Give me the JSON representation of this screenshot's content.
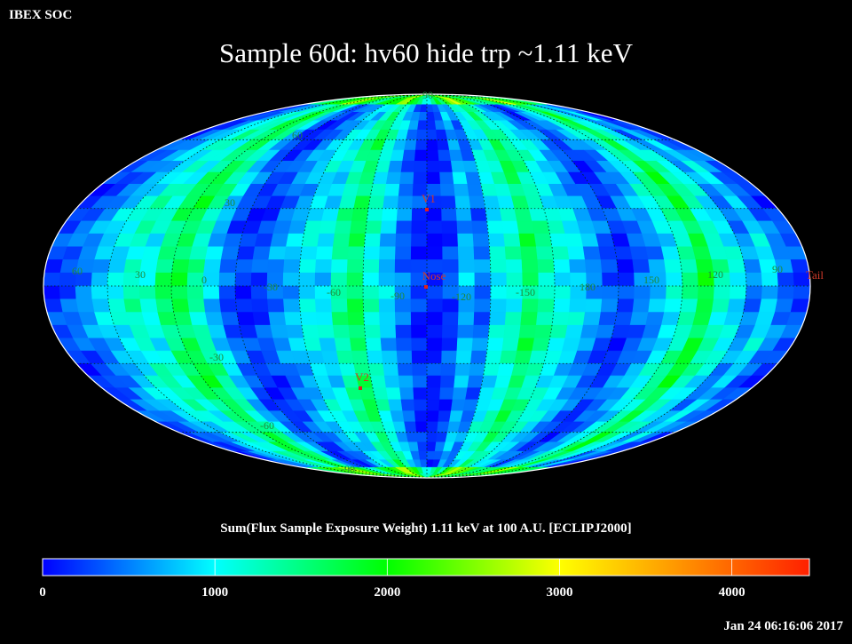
{
  "header": {
    "corner_label": "IBEX SOC",
    "title": "Sample 60d: hv60 hide trp ~1.11 keV"
  },
  "map": {
    "latitude_labels": [
      "90",
      "60",
      "30",
      "-30",
      "-60",
      "-90"
    ],
    "longitude_labels": [
      "60",
      "30",
      "0",
      "-30",
      "-60",
      "-90",
      "-120",
      "-150",
      "180",
      "150",
      "120",
      "90"
    ],
    "markers": [
      {
        "label": "V1"
      },
      {
        "label": "Nose"
      },
      {
        "label": "V2"
      },
      {
        "label": "Tail"
      }
    ]
  },
  "colorbar": {
    "title": "Sum(Flux Sample Exposure Weight)  1.11 keV at 100 A.U. [ECLIPJ2000]",
    "tick_labels": [
      "0",
      "1000",
      "2000",
      "3000",
      "4000"
    ],
    "range": [
      0,
      4450
    ],
    "colors": [
      "#0000ff",
      "#00ffff",
      "#00ff00",
      "#ffff00",
      "#ff0000"
    ]
  },
  "footer": {
    "timestamp": "Jan 24 06:16:06 2017"
  }
}
